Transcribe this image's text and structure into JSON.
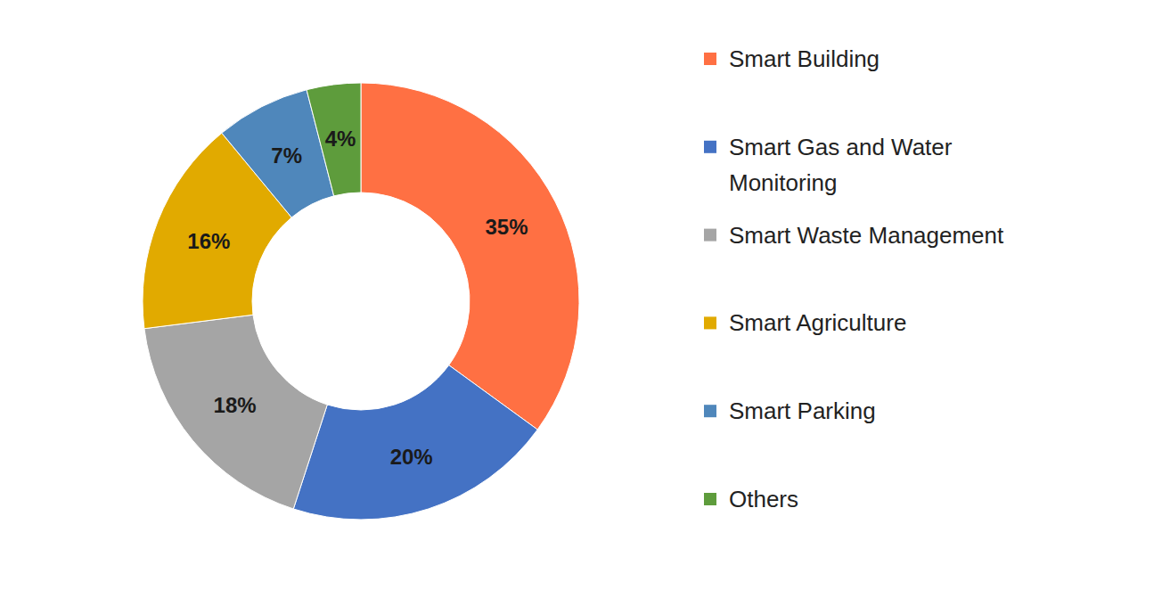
{
  "chart_data": {
    "type": "pie",
    "categories": [
      "Smart Building",
      "Smart Gas and Water Monitoring",
      "Smart Waste Management",
      "Smart Agriculture",
      "Smart Parking",
      "Others"
    ],
    "values": [
      35,
      20,
      18,
      16,
      7,
      4
    ],
    "value_labels": [
      "35%",
      "20%",
      "18%",
      "16%",
      "7%",
      "4%"
    ],
    "colors": [
      "#ff7043",
      "#4472c4",
      "#a5a5a5",
      "#e1aa00",
      "#4f87bb",
      "#5e9c3c"
    ],
    "data_labels": true,
    "legend": "right"
  }
}
